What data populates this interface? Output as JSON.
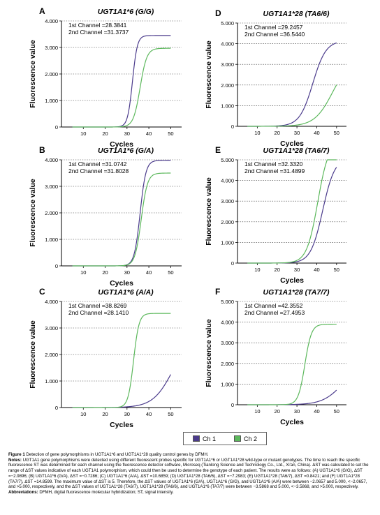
{
  "chart_data": [
    {
      "type": "line",
      "panel_letter": "A",
      "title": "UGT1A1*6 (G/G)",
      "xlabel": "Cycles",
      "ylabel": "Fluorescence value",
      "xlim": [
        0,
        55
      ],
      "ylim": [
        0,
        4000
      ],
      "xticks": [
        "10",
        "20",
        "30",
        "40",
        "50"
      ],
      "yticks": [
        "0",
        "1.000",
        "2.000",
        "3.000",
        "4.000"
      ],
      "annotations": [
        "1st Channel =28.3841",
        "2nd Channel =31.3737"
      ],
      "grid": "horizontal dashed",
      "series": [
        {
          "name": "Ch 1",
          "color": "#4b3b8c",
          "plateau": 3450,
          "midpoint": 32.5,
          "slope": 0.9
        },
        {
          "name": "Ch 2",
          "color": "#5cb85c",
          "plateau": 2970,
          "midpoint": 36.0,
          "slope": 0.65
        }
      ]
    },
    {
      "type": "line",
      "panel_letter": "D",
      "title": "UGT1A1*28 (TA6/6)",
      "xlabel": "Cycles",
      "ylabel": "Fluorescence value",
      "xlim": [
        0,
        55
      ],
      "ylim": [
        0,
        5000
      ],
      "xticks": [
        "10",
        "20",
        "30",
        "40",
        "50"
      ],
      "yticks": [
        "0",
        "1.000",
        "2.000",
        "3.000",
        "4.000",
        "5.000"
      ],
      "annotations": [
        "1st Channel =29.2457",
        "2nd Channel =36.5440"
      ],
      "grid": "horizontal dashed",
      "series": [
        {
          "name": "Ch 1",
          "color": "#4b3b8c",
          "plateau": 4150,
          "midpoint": 38.0,
          "slope": 0.3
        },
        {
          "name": "Ch 2",
          "color": "#5cb85c",
          "plateau": 3300,
          "midpoint": 48.0,
          "slope": 0.22
        }
      ]
    },
    {
      "type": "line",
      "panel_letter": "B",
      "title": "UGT1A1*6 (G/A)",
      "xlabel": "Cycles",
      "ylabel": "Fluorescence value",
      "xlim": [
        0,
        55
      ],
      "ylim": [
        0,
        4000
      ],
      "xticks": [
        "10",
        "20",
        "30",
        "40",
        "50"
      ],
      "yticks": [
        "0",
        "1.000",
        "2.000",
        "3.000",
        "4.000"
      ],
      "annotations": [
        "1st Channel =31.0742",
        "2nd Channel =31.8028"
      ],
      "grid": "horizontal dashed",
      "series": [
        {
          "name": "Ch 1",
          "color": "#4b3b8c",
          "plateau": 3980,
          "midpoint": 36.0,
          "slope": 0.75
        },
        {
          "name": "Ch 2",
          "color": "#5cb85c",
          "plateau": 3500,
          "midpoint": 36.5,
          "slope": 0.7
        }
      ]
    },
    {
      "type": "line",
      "panel_letter": "E",
      "title": "UGT1A1*28 (TA6/7)",
      "xlabel": "Cycles",
      "ylabel": "Fluorescence value",
      "xlim": [
        0,
        55
      ],
      "ylim": [
        0,
        5000
      ],
      "xticks": [
        "10",
        "20",
        "30",
        "40",
        "50"
      ],
      "yticks": [
        "0",
        "1.000",
        "2.000",
        "3.000",
        "4.000",
        "5.000"
      ],
      "annotations": [
        "1st Channel =32.3320",
        "2nd Channel =31.4899"
      ],
      "grid": "horizontal dashed",
      "series": [
        {
          "name": "Ch 1",
          "color": "#4b3b8c",
          "plateau": 5100,
          "midpoint": 43.0,
          "slope": 0.33
        },
        {
          "name": "Ch 2",
          "color": "#5cb85c",
          "plateau": 5900,
          "midpoint": 40.5,
          "slope": 0.36
        }
      ]
    },
    {
      "type": "line",
      "panel_letter": "C",
      "title": "UGT1A1*6 (A/A)",
      "xlabel": "Cycles",
      "ylabel": "Fluorescence value",
      "xlim": [
        0,
        55
      ],
      "ylim": [
        0,
        4000
      ],
      "xticks": [
        "10",
        "20",
        "30",
        "40",
        "50"
      ],
      "yticks": [
        "0",
        "1.000",
        "2.000",
        "3.000",
        "4.000"
      ],
      "annotations": [
        "1st Channel =38.8269",
        "2nd Channel =28.1410"
      ],
      "grid": "horizontal dashed",
      "series": [
        {
          "name": "Ch 1",
          "color": "#4b3b8c",
          "plateau": 2800,
          "midpoint": 51.0,
          "slope": 0.22
        },
        {
          "name": "Ch 2",
          "color": "#5cb85c",
          "plateau": 3550,
          "midpoint": 33.0,
          "slope": 0.8
        }
      ]
    },
    {
      "type": "line",
      "panel_letter": "F",
      "title": "UGT1A1*28 (TA7/7)",
      "xlabel": "Cycles",
      "ylabel": "Fluorescence value",
      "xlim": [
        0,
        55
      ],
      "ylim": [
        0,
        5000
      ],
      "xticks": [
        "10",
        "20",
        "30",
        "40",
        "50"
      ],
      "yticks": [
        "0",
        "1.000",
        "2.000",
        "3.000",
        "4.000",
        "5.000"
      ],
      "annotations": [
        "1st Channel =42.3552",
        "2nd Channel =27.4953"
      ],
      "grid": "horizontal dashed",
      "series": [
        {
          "name": "Ch 1",
          "color": "#4b3b8c",
          "plateau": 2000,
          "midpoint": 53.0,
          "slope": 0.2
        },
        {
          "name": "Ch 2",
          "color": "#5cb85c",
          "plateau": 3900,
          "midpoint": 34.0,
          "slope": 0.6
        }
      ]
    }
  ],
  "legend": {
    "items": [
      {
        "label": "Ch 1",
        "color": "#4b3b8c"
      },
      {
        "label": "Ch 2",
        "color": "#5cb85c"
      }
    ]
  },
  "caption": {
    "figure": "Figure 1",
    "figure_text": "Detection of gene polymorphisms in UGT1A1*6 and UGT1A1*28 quality control genes by DFMH.",
    "notes_label": "Notes:",
    "notes_text": "UGT1A1 gene polymorphisms were detected using different fluorescent probes specific for UGT1A1*6 or UGT1A1*28 wild-type or mutant genotypes. The time to reach the specific fluorescence ST was determined for each channel using the fluorescence detector software, Microseq (Tianlong Science and Technology Co., Ltd., Xi'an, China). ΔST was calculated to set the range of ΔST values indicative of each UGT1A1 polymorphism, which could then be used to determine the genotype of each patient. The results were as follows: (A) UGT1A1*6 (G/G), ΔST =−2.9896; (B) UGT1A1*6 (G/A), ΔST =−0.7286; (C) UGT1A1*6 (A/A), ΔST =10.6859; (D) UGT1A1*28 (TA6/6), ΔST =−7.2983; (E) UGT1A1*28 (TA6/7), ΔST =0.8421; and (F) UGT1A1*28 (TA7/7), ΔST =14.8599. The maximum value of ΔST is 5. Therefore, the ΔST values of UGT1A1*6 (G/A), UGT1A1*6 (G/G), and UGT1A1*6 (A/A) were between −2.0657 and 5.000, <−2.0657, and >5.000, respectively, and the ΔST values of UGT1A1*28 (TA6/7), UGT1A1*28 (TA6/6), and UGT1A1*6 (TA7/7) were between −3.5868 and 5.000, <−3.5868, and >5.000, respectively.",
    "abbr_label": "Abbreviations:",
    "abbr_text": "DFMH, digital fluorescence molecular hybridization; ST, signal intensity."
  }
}
